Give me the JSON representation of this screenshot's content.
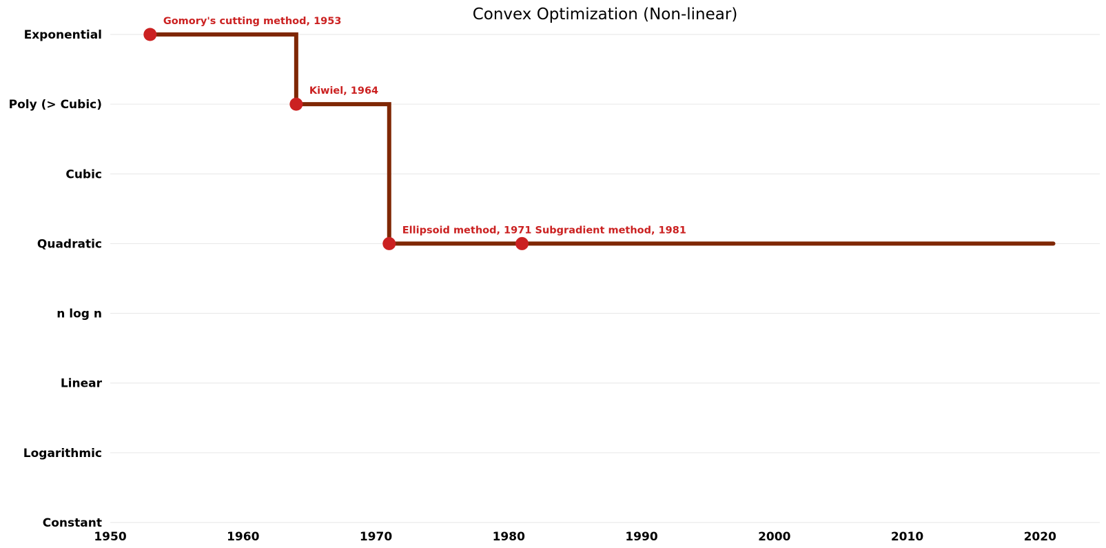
{
  "chart_data": {
    "type": "line",
    "step": "post",
    "title": "Convex Optimization (Non-linear)",
    "xlabel": "",
    "ylabel": "",
    "xlim": [
      1950,
      2024.5
    ],
    "xticks": [
      1950,
      1960,
      1970,
      1980,
      1990,
      2000,
      2010,
      2020
    ],
    "y_categories": [
      "Constant",
      "Logarithmic",
      "Linear",
      "n log n",
      "Quadratic",
      "Cubic",
      "Poly (> Cubic)",
      "Exponential"
    ],
    "grid": "horizontal",
    "line_color": "#7f2704",
    "marker_color": "#cb2121",
    "series": [
      {
        "x": [
          1953,
          1964,
          1971,
          1981,
          2021
        ],
        "y": [
          "Exponential",
          "Poly (> Cubic)",
          "Quadratic",
          "Quadratic",
          "Quadratic"
        ]
      }
    ],
    "points": [
      {
        "x": 1953,
        "y": "Exponential",
        "label": "Gomory's cutting method, 1953"
      },
      {
        "x": 1964,
        "y": "Poly (> Cubic)",
        "label": "Kiwiel, 1964"
      },
      {
        "x": 1971,
        "y": "Quadratic",
        "label": "Ellipsoid method, 1971"
      },
      {
        "x": 1981,
        "y": "Quadratic",
        "label": "Subgradient method, 1981"
      }
    ]
  }
}
